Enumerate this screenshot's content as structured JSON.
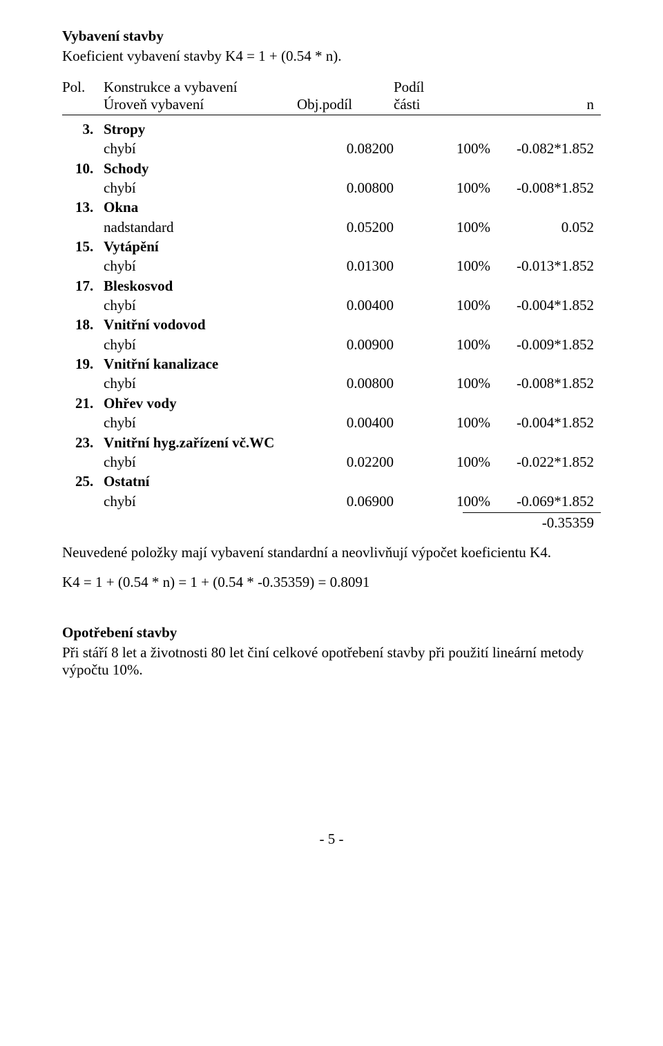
{
  "headings": {
    "vybaveni_stavby": "Vybavení stavby",
    "opotrebeni_stavby": "Opotřebení stavby"
  },
  "koef_line": "Koeficient vybavení stavby K4 = 1 + (0.54 * n).",
  "table_header": {
    "pol": "Pol.",
    "konstrukce": "Konstrukce a vybavení",
    "uroven": "Úroveň vybavení",
    "obj_podil": "Obj.podíl",
    "podil": "Podíl",
    "casti": "části",
    "n": "n"
  },
  "items": [
    {
      "num": "3",
      "name": "Stropy",
      "state": "chybí",
      "obj": "0.08200",
      "pct": "100%",
      "n": "-0.082*1.852"
    },
    {
      "num": "10",
      "name": "Schody",
      "state": "chybí",
      "obj": "0.00800",
      "pct": "100%",
      "n": "-0.008*1.852"
    },
    {
      "num": "13",
      "name": "Okna",
      "state": "nadstandard",
      "obj": "0.05200",
      "pct": "100%",
      "n": "0.052"
    },
    {
      "num": "15",
      "name": "Vytápění",
      "state": "chybí",
      "obj": "0.01300",
      "pct": "100%",
      "n": "-0.013*1.852"
    },
    {
      "num": "17",
      "name": "Bleskosvod",
      "state": "chybí",
      "obj": "0.00400",
      "pct": "100%",
      "n": "-0.004*1.852"
    },
    {
      "num": "18",
      "name": "Vnitřní vodovod",
      "state": "chybí",
      "obj": "0.00900",
      "pct": "100%",
      "n": "-0.009*1.852"
    },
    {
      "num": "19",
      "name": "Vnitřní kanalizace",
      "state": "chybí",
      "obj": "0.00800",
      "pct": "100%",
      "n": "-0.008*1.852"
    },
    {
      "num": "21",
      "name": "Ohřev vody",
      "state": "chybí",
      "obj": "0.00400",
      "pct": "100%",
      "n": "-0.004*1.852"
    },
    {
      "num": "23",
      "name": "Vnitřní hyg.zařízení vč.WC",
      "state": "chybí",
      "obj": "0.02200",
      "pct": "100%",
      "n": "-0.022*1.852"
    },
    {
      "num": "25",
      "name": "Ostatní",
      "state": "chybí",
      "obj": "0.06900",
      "pct": "100%",
      "n": "-0.069*1.852"
    }
  ],
  "total_n": "-0.35359",
  "paragraphs": {
    "neuvedene": "Neuvedené položky mají vybavení standardní a neovlivňují výpočet koeficientu K4.",
    "k4_calc": "K4 = 1 + (0.54 * n) = 1 + (0.54 * -0.35359) = 0.8091",
    "opotrebeni": "Při stáří 8 let a životnosti 80 let činí celkové opotřebení stavby při použití lineární metody výpočtu 10%."
  },
  "page_number": "- 5 -"
}
